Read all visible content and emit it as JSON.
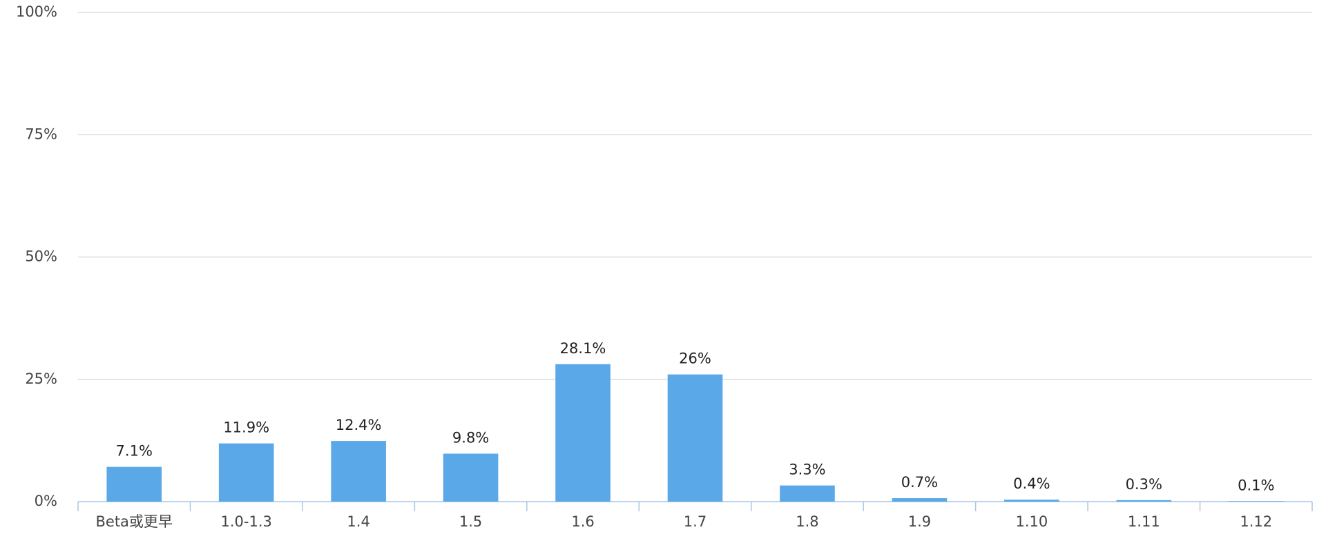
{
  "chart_data": {
    "type": "bar",
    "categories": [
      "Beta或更早",
      "1.0-1.3",
      "1.4",
      "1.5",
      "1.6",
      "1.7",
      "1.8",
      "1.9",
      "1.10",
      "1.11",
      "1.12"
    ],
    "values": [
      7.1,
      11.9,
      12.4,
      9.8,
      28.1,
      26,
      3.3,
      0.7,
      0.4,
      0.3,
      0.1
    ],
    "value_labels": [
      "7.1%",
      "11.9%",
      "12.4%",
      "9.8%",
      "28.1%",
      "26%",
      "3.3%",
      "0.7%",
      "0.4%",
      "0.3%",
      "0.1%"
    ],
    "color": "#5aa8e8",
    "ylim": [
      0,
      100
    ],
    "yticks": [
      {
        "value": 0,
        "label": "0%"
      },
      {
        "value": 25,
        "label": "25%"
      },
      {
        "value": 50,
        "label": "50%"
      },
      {
        "value": 75,
        "label": "75%"
      },
      {
        "value": 100,
        "label": "100%"
      }
    ],
    "grid": true
  }
}
